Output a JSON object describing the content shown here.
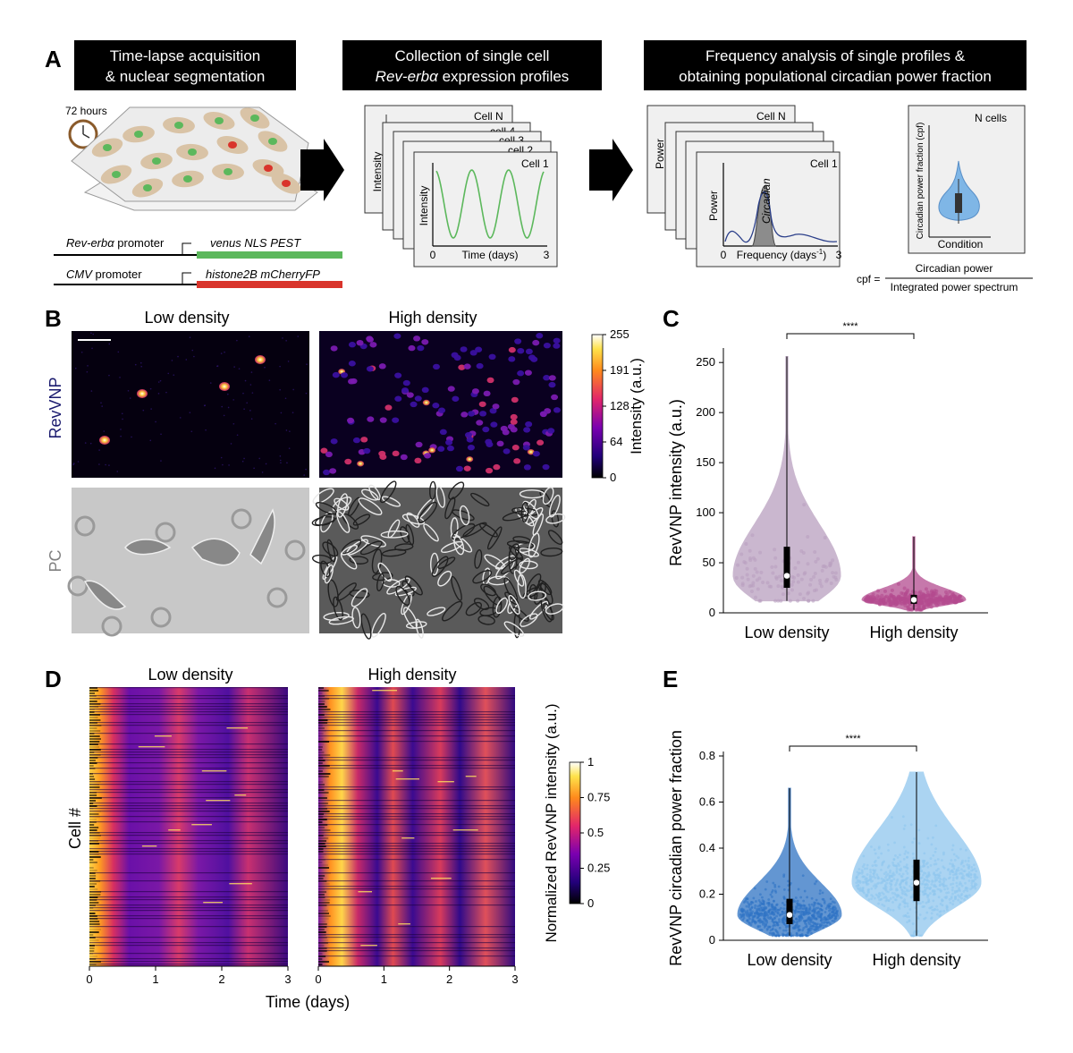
{
  "panel_labels": {
    "A": "A",
    "B": "B",
    "C": "C",
    "D": "D",
    "E": "E"
  },
  "panel_a": {
    "box1": {
      "line1": "Time-lapse acquisition",
      "line2": "& nuclear segmentation"
    },
    "box2": {
      "line1": "Collection of single cell",
      "line2_italic": "Rev-erbα",
      "line2_rest": " expression profiles"
    },
    "box3": {
      "line1": "Frequency analysis of single profiles &",
      "line2": "obtaining populational circadian power fraction"
    },
    "timer_label": "72 hours",
    "construct1": {
      "promoter_italic": "Rev-erbα",
      "promoter_rest": " promoter",
      "gene": "venus NLS PEST"
    },
    "construct2": {
      "promoter_italic": "CMV",
      "promoter_rest": " promoter",
      "gene": "histone2B mCherryFP"
    },
    "intensity_stack": {
      "back_title": "Cell N",
      "front_title": "Cell 1",
      "partial_titles": [
        "cell 4",
        "cell 3",
        "cell 2"
      ],
      "ylabel": "Intensity",
      "xlabel": "Time (days)",
      "x_min": "0",
      "x_max": "3"
    },
    "power_stack": {
      "back_title": "Cell N",
      "front_title": "Cell 1",
      "ylabel": "Power",
      "xlabel_main": "Frequency (days",
      "xlabel_sup": "-1",
      "xlabel_end": ")",
      "x_min": "0",
      "x_max": "3",
      "peak_label": "Circadian"
    },
    "cpf_box": {
      "title": "N cells",
      "ylabel": "Circadian power fraction (cpf)",
      "xlabel": "Condition"
    },
    "formula": {
      "lhs": "cpf =",
      "numerator": "Circadian power",
      "denominator": "Integrated power spectrum"
    }
  },
  "panel_b": {
    "col1": "Low density",
    "col2": "High density",
    "row1": "RevVNP",
    "row2": "PC",
    "colorbar": {
      "label": "Intensity (a.u.)",
      "ticks": [
        "255",
        "191",
        "128",
        "64",
        "0"
      ]
    },
    "colors": {
      "row1_label": "#1a1a6e",
      "row2_label": "#808080"
    }
  },
  "panel_d": {
    "col1": "Low density",
    "col2": "High density",
    "ylabel": "Cell #",
    "xlabel": "Time (days)",
    "x_ticks": [
      "0",
      "1",
      "2",
      "3"
    ],
    "colorbar": {
      "label": "Normalized RevVNP intensity (a.u.)",
      "ticks": [
        "1",
        "0.75",
        "0.5",
        "0.25",
        "0"
      ]
    }
  },
  "chart_data": [
    {
      "id": "C",
      "type": "violin",
      "categories": [
        "Low density",
        "High density"
      ],
      "ylabel": "RevVNP intensity (a.u.)",
      "ylim": [
        0,
        260
      ],
      "yticks": [
        0,
        50,
        100,
        150,
        200,
        250
      ],
      "significance": "****",
      "colors": [
        "#b9a0bf",
        "#b44b8f"
      ],
      "series": [
        {
          "values": {
            "median": 37,
            "q1": 25,
            "q3": 66,
            "min": 12,
            "max": 256
          }
        },
        {
          "values": {
            "median": 13,
            "q1": 9,
            "q3": 18,
            "min": 3,
            "max": 76
          }
        }
      ]
    },
    {
      "id": "E",
      "type": "violin",
      "categories": [
        "Low density",
        "High density"
      ],
      "ylabel": "RevVNP circadian power fraction",
      "ylim": [
        0,
        0.8
      ],
      "yticks": [
        0,
        0.2,
        0.4,
        0.6,
        0.8
      ],
      "significance": "****",
      "colors": [
        "#2f73c4",
        "#8fc6ee"
      ],
      "series": [
        {
          "values": {
            "median": 0.11,
            "q1": 0.07,
            "q3": 0.18,
            "min": 0.02,
            "max": 0.66
          }
        },
        {
          "values": {
            "median": 0.25,
            "q1": 0.17,
            "q3": 0.35,
            "min": 0.02,
            "max": 0.73
          }
        }
      ]
    }
  ]
}
